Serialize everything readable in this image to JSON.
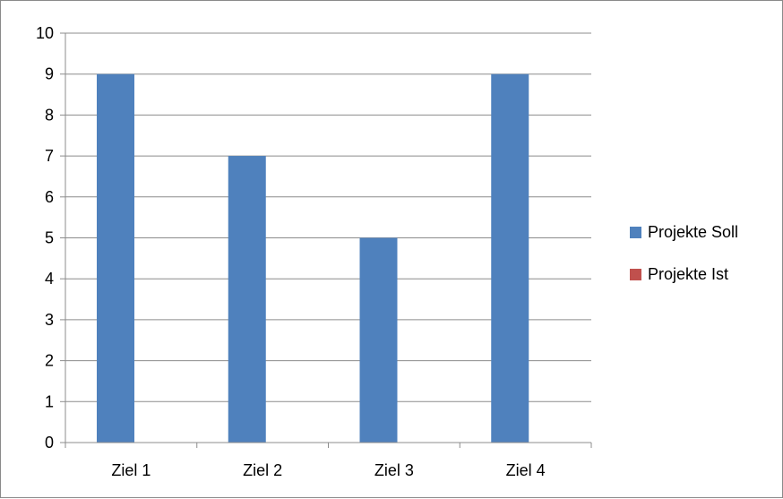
{
  "chart_data": {
    "type": "bar",
    "categories": [
      "Ziel 1",
      "Ziel 2",
      "Ziel 3",
      "Ziel 4"
    ],
    "series": [
      {
        "name": "Projekte Soll",
        "color": "#4F81BD",
        "values": [
          9,
          7,
          5,
          9
        ]
      },
      {
        "name": "Projekte Ist",
        "color": "#C0504D",
        "values": [
          0,
          0,
          0,
          0
        ]
      }
    ],
    "ylim": [
      0,
      10
    ],
    "yticks": [
      "0",
      "1",
      "2",
      "3",
      "4",
      "5",
      "6",
      "7",
      "8",
      "9",
      "10"
    ],
    "grid": true,
    "legend_position": "right",
    "title": "",
    "xlabel": "",
    "ylabel": ""
  }
}
